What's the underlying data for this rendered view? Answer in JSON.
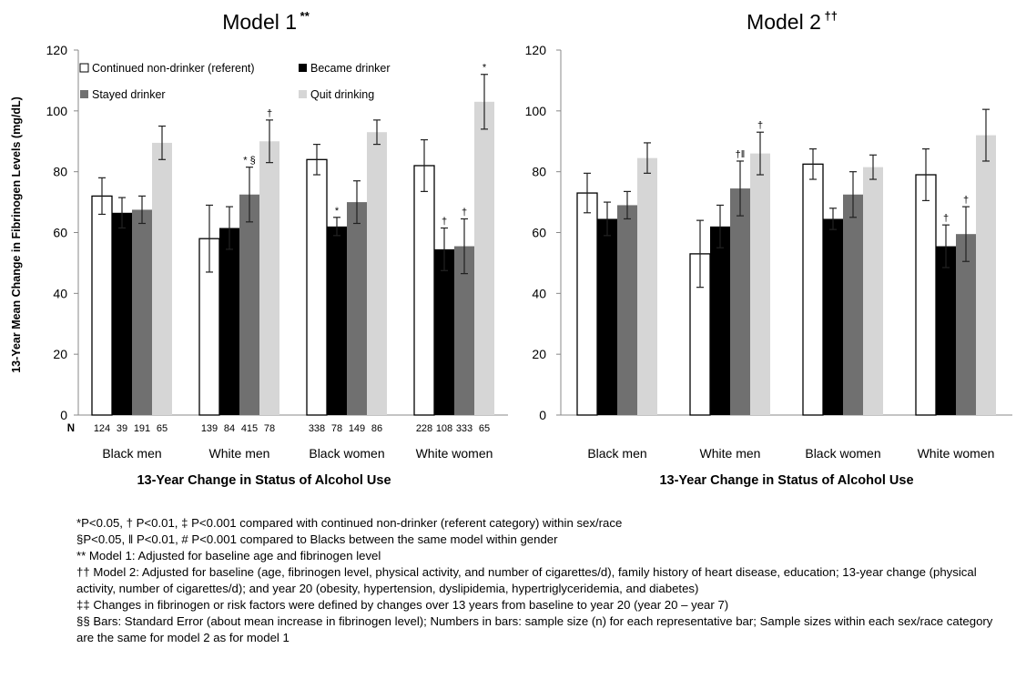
{
  "chart_data": [
    {
      "type": "bar",
      "title": "Model 1",
      "title_superscript": "**",
      "ylabel": "13-Year Mean Change in Fibrinogen Levels (mg/dL)",
      "xlabel": "13-Year Change in Status of Alcohol Use",
      "ylim": [
        0,
        120
      ],
      "yticks": [
        "0",
        "20",
        "40",
        "60",
        "80",
        "100",
        "120"
      ],
      "grid": false,
      "legend_position": "top-left",
      "categories": [
        "Black men",
        "White men",
        "Black women",
        "White women"
      ],
      "n_row_label": "N",
      "series": [
        {
          "name": "Continued non-drinker (referent)",
          "color": "#ffffff",
          "values": [
            72,
            58,
            84,
            82
          ],
          "errors": [
            6,
            11,
            5,
            8.5
          ],
          "n": [
            "124",
            "139",
            "338",
            "228"
          ],
          "annotations": [
            "",
            "",
            "",
            ""
          ]
        },
        {
          "name": "Became drinker",
          "color": "#000000",
          "values": [
            66.5,
            61.5,
            62,
            54.5
          ],
          "errors": [
            5,
            7,
            3,
            7
          ],
          "n": [
            "39",
            "84",
            "78",
            "108"
          ],
          "annotations": [
            "",
            "",
            "*",
            "†"
          ]
        },
        {
          "name": "Stayed drinker",
          "color": "#707070",
          "values": [
            67.5,
            72.5,
            70,
            55.5
          ],
          "errors": [
            4.5,
            9,
            7,
            9
          ],
          "n": [
            "191",
            "415",
            "149",
            "333"
          ],
          "annotations": [
            "",
            "* §",
            "",
            "†"
          ]
        },
        {
          "name": "Quit drinking",
          "color": "#d6d6d6",
          "values": [
            89.5,
            90,
            93,
            103
          ],
          "errors": [
            5.5,
            7,
            4,
            9
          ],
          "n": [
            "65",
            "78",
            "86",
            "65"
          ],
          "annotations": [
            "",
            "†",
            "",
            "*"
          ]
        }
      ]
    },
    {
      "type": "bar",
      "title": "Model 2",
      "title_superscript": "††",
      "xlabel": "13-Year Change in Status of Alcohol Use",
      "ylim": [
        0,
        120
      ],
      "yticks": [
        "0",
        "20",
        "40",
        "60",
        "80",
        "100",
        "120"
      ],
      "grid": false,
      "categories": [
        "Black men",
        "White men",
        "Black women",
        "White women"
      ],
      "series": [
        {
          "name": "Continued non-drinker (referent)",
          "color": "#ffffff",
          "values": [
            73,
            53,
            82.5,
            79
          ],
          "errors": [
            6.5,
            11,
            5,
            8.5
          ],
          "annotations": [
            "",
            "",
            "",
            ""
          ]
        },
        {
          "name": "Became drinker",
          "color": "#000000",
          "values": [
            64.5,
            62,
            64.5,
            55.5
          ],
          "errors": [
            5.5,
            7,
            3.5,
            7
          ],
          "annotations": [
            "",
            "",
            "",
            "†"
          ]
        },
        {
          "name": "Stayed drinker",
          "color": "#707070",
          "values": [
            69,
            74.5,
            72.5,
            59.5
          ],
          "errors": [
            4.5,
            9,
            7.5,
            9
          ],
          "annotations": [
            "",
            "†‖",
            "",
            "†"
          ]
        },
        {
          "name": "Quit drinking",
          "color": "#d6d6d6",
          "values": [
            84.5,
            86,
            81.5,
            92
          ],
          "errors": [
            5,
            7,
            4,
            8.5
          ],
          "annotations": [
            "",
            "†",
            "",
            ""
          ]
        }
      ]
    }
  ],
  "footnotes": [
    "*P<0.05, † P<0.01, ‡ P<0.001 compared with continued non-drinker (referent category) within sex/race",
    "§P<0.05, ‖ P<0.01, # P<0.001 compared to Blacks between the same model within gender",
    "** Model 1: Adjusted for baseline age and fibrinogen level",
    "†† Model 2: Adjusted for baseline (age, fibrinogen level, physical activity, and number of cigarettes/d), family history of heart disease, education; 13-year change (physical activity, number of cigarettes/d); and year 20 (obesity, hypertension, dyslipidemia, hypertriglyceridemia, and diabetes)",
    "‡‡ Changes in fibrinogen or risk factors were defined by changes over 13 years from baseline to year 20 (year 20 – year 7)",
    "§§ Bars: Standard Error (about mean increase in fibrinogen level); Numbers in bars: sample size (n) for each representative bar; Sample sizes within each sex/race category are the same for model 2 as for model 1"
  ]
}
